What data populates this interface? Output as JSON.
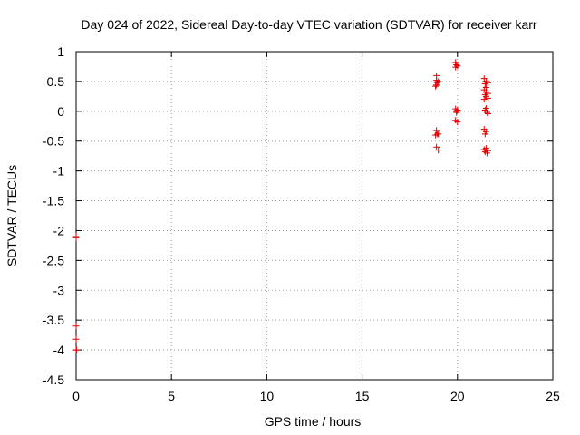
{
  "chart_data": {
    "type": "scatter",
    "title": "Day 024 of 2022, Sidereal Day-to-day VTEC variation (SDTVAR) for receiver karr",
    "xlabel": "GPS time / hours",
    "ylabel": "SDTVAR / TECUs",
    "xlim": [
      0,
      25
    ],
    "ylim": [
      -4.5,
      1
    ],
    "xticks": [
      0,
      5,
      10,
      15,
      20,
      25
    ],
    "xtick_labels": [
      "0",
      "5",
      "10",
      "15",
      "20",
      "25"
    ],
    "yticks": [
      1,
      0.5,
      0,
      -0.5,
      -1,
      -1.5,
      -2,
      -2.5,
      -3,
      -3.5,
      -4,
      -4.5
    ],
    "ytick_labels": [
      "1",
      "0.5",
      "0",
      "-0.5",
      "-1",
      "-1.5",
      "-2",
      "-2.5",
      "-3",
      "-3.5",
      "-4",
      "-4.5"
    ],
    "grid": true,
    "marker": "plus",
    "color": "#e00000",
    "series": [
      {
        "name": "SDTVAR",
        "points": [
          [
            0.0,
            -2.1
          ],
          [
            0.0,
            -2.12
          ],
          [
            0.0,
            -3.6
          ],
          [
            0.0,
            -3.82
          ],
          [
            0.0,
            -4.0
          ],
          [
            0.02,
            -4.0
          ],
          [
            18.9,
            0.6
          ],
          [
            18.9,
            0.52
          ],
          [
            18.95,
            0.48
          ],
          [
            18.9,
            0.44
          ],
          [
            18.85,
            0.42
          ],
          [
            19.0,
            0.5
          ],
          [
            18.9,
            -0.32
          ],
          [
            18.95,
            -0.38
          ],
          [
            18.85,
            -0.4
          ],
          [
            19.0,
            -0.38
          ],
          [
            18.9,
            -0.6
          ],
          [
            19.0,
            -0.65
          ],
          [
            19.9,
            0.82
          ],
          [
            19.95,
            0.78
          ],
          [
            19.9,
            0.74
          ],
          [
            20.0,
            0.76
          ],
          [
            19.9,
            0.04
          ],
          [
            19.95,
            0.0
          ],
          [
            20.0,
            0.02
          ],
          [
            19.95,
            -0.02
          ],
          [
            19.9,
            -0.15
          ],
          [
            20.0,
            -0.18
          ],
          [
            21.4,
            0.55
          ],
          [
            21.5,
            0.5
          ],
          [
            21.45,
            0.46
          ],
          [
            21.6,
            0.48
          ],
          [
            21.5,
            0.4
          ],
          [
            21.4,
            0.36
          ],
          [
            21.5,
            0.32
          ],
          [
            21.6,
            0.3
          ],
          [
            21.45,
            0.28
          ],
          [
            21.5,
            0.25
          ],
          [
            21.6,
            0.22
          ],
          [
            21.4,
            0.2
          ],
          [
            21.5,
            0.05
          ],
          [
            21.45,
            0.02
          ],
          [
            21.55,
            -0.02
          ],
          [
            21.6,
            -0.04
          ],
          [
            21.4,
            -0.3
          ],
          [
            21.5,
            -0.34
          ],
          [
            21.45,
            -0.38
          ],
          [
            21.5,
            -0.62
          ],
          [
            21.4,
            -0.64
          ],
          [
            21.6,
            -0.66
          ],
          [
            21.45,
            -0.68
          ],
          [
            21.55,
            -0.7
          ]
        ]
      }
    ]
  }
}
